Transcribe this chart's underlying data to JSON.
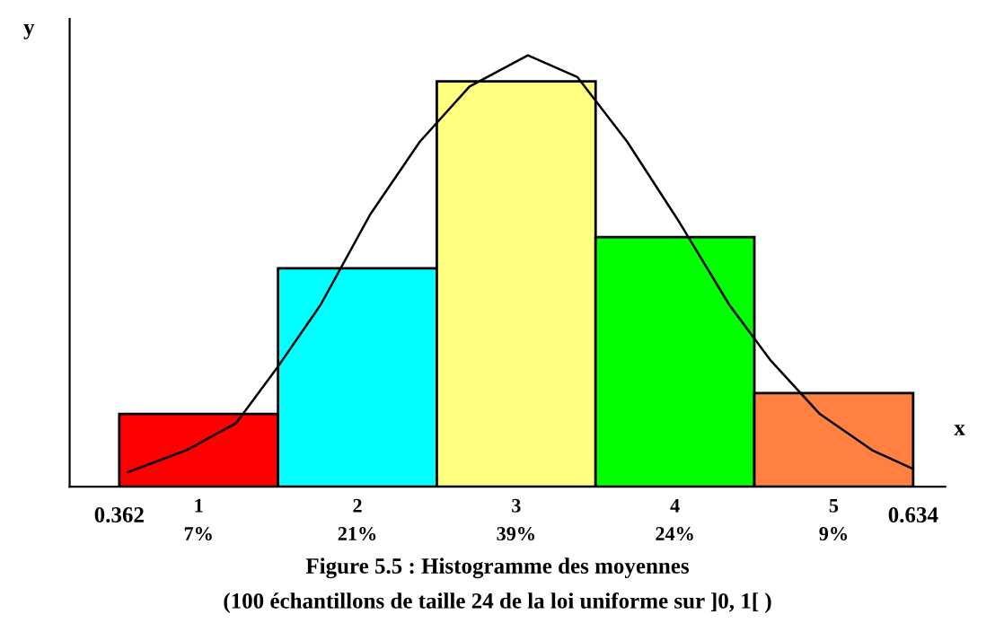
{
  "chart_data": {
    "type": "histogram",
    "title": "Figure 5.5 : Histogramme des moyennes",
    "subtitle": "(100 échantillons de taille 24 de la loi uniforme sur ]0, 1[ )",
    "xlabel": "x",
    "ylabel": "y",
    "bins": [
      0.362,
      0.4164,
      0.4708,
      0.5252,
      0.5796,
      0.634
    ],
    "values": [
      7,
      21,
      39,
      24,
      9
    ],
    "colors": [
      "#ff0000",
      "#00ffff",
      "#ffff80",
      "#00ff00",
      "#ff8040"
    ],
    "value_labels": [
      "7%",
      "21%",
      "39%",
      "24%",
      "9%"
    ],
    "annotations": [
      "1",
      "2",
      "3",
      "4",
      "5"
    ],
    "series": [
      {
        "type": "line",
        "color": "#000000",
        "x": [
          0.365,
          0.385,
          0.402,
          0.416,
          0.431,
          0.448,
          0.465,
          0.482,
          0.502,
          0.519,
          0.536,
          0.554,
          0.571,
          0.585,
          0.602,
          0.62,
          0.634
        ],
        "values": [
          1.4,
          3.5,
          6.1,
          11.4,
          17.5,
          26.2,
          33.2,
          38.5,
          41.5,
          39.4,
          33.2,
          25.4,
          17.5,
          12.2,
          7.0,
          3.5,
          1.7
        ]
      }
    ],
    "xlim": [
      0.345,
      0.645
    ],
    "ylim": [
      0,
      45
    ],
    "xticks": [
      0.362,
      0.634
    ],
    "tick_labels": "x",
    "grid": false,
    "legend": false,
    "marker": "none",
    "line_style": "solid"
  }
}
